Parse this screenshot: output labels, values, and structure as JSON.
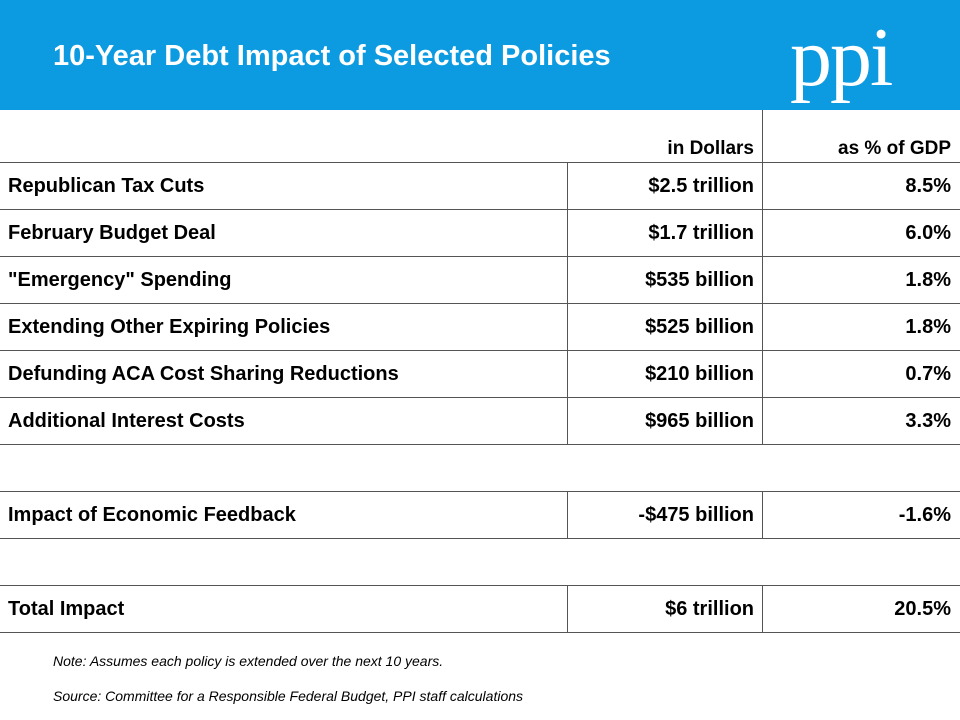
{
  "header": {
    "title": "10-Year Debt Impact of Selected Policies",
    "logo_text": "ppi",
    "banner_color": "#0c9ae0"
  },
  "table": {
    "columns": [
      "",
      "in Dollars",
      "as % of GDP"
    ],
    "rows": [
      {
        "label": "Republican Tax Cuts",
        "dollars": "$2.5 trillion",
        "gdp": "8.5%"
      },
      {
        "label": "February Budget Deal",
        "dollars": "$1.7 trillion",
        "gdp": "6.0%"
      },
      {
        "label": "\"Emergency\" Spending",
        "dollars": "$535 billion",
        "gdp": "1.8%"
      },
      {
        "label": "Extending Other Expiring Policies",
        "dollars": "$525 billion",
        "gdp": "1.8%"
      },
      {
        "label": "Defunding ACA Cost Sharing Reductions",
        "dollars": "$210 billion",
        "gdp": "0.7%"
      },
      {
        "label": "Additional Interest Costs",
        "dollars": "$965 billion",
        "gdp": "3.3%"
      },
      {
        "label": "",
        "dollars": "",
        "gdp": ""
      },
      {
        "label": "Impact of Economic Feedback",
        "dollars": "-$475 billion",
        "gdp": "-1.6%"
      },
      {
        "label": "",
        "dollars": "",
        "gdp": ""
      },
      {
        "label": "Total Impact",
        "dollars": "$6 trillion",
        "gdp": "20.5%"
      }
    ]
  },
  "footer": {
    "note": "Note: Assumes each policy is extended over the next 10 years.",
    "source": "Source: Committee for a Responsible Federal Budget, PPI staff calculations"
  }
}
